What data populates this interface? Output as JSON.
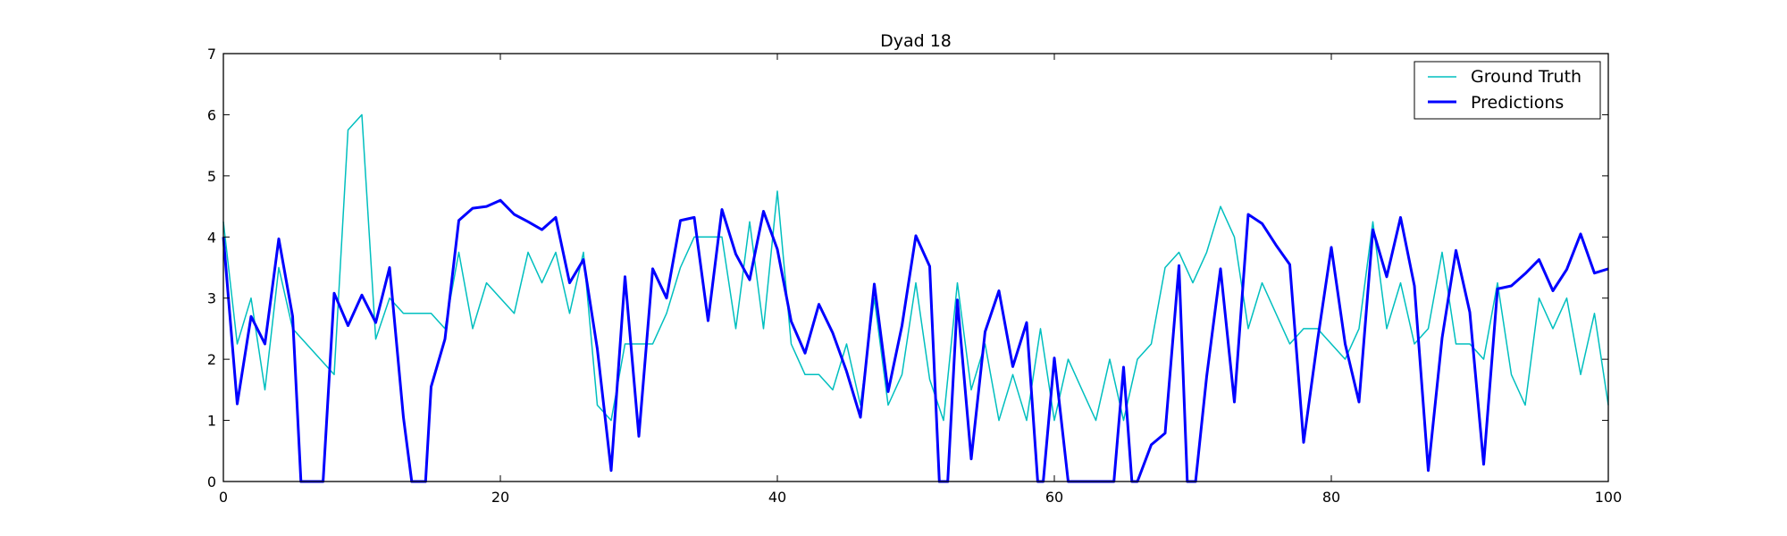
{
  "chart_data": {
    "type": "line",
    "title": "Dyad 18",
    "xlabel": "",
    "ylabel": "",
    "xlim": [
      0,
      100
    ],
    "ylim": [
      0,
      7
    ],
    "x_ticks": [
      "0",
      "20",
      "40",
      "60",
      "80",
      "100"
    ],
    "y_ticks": [
      "0",
      "1",
      "2",
      "3",
      "4",
      "5",
      "6",
      "7"
    ],
    "grid": false,
    "legend_position": "top-right",
    "series": [
      {
        "name": "Ground Truth",
        "color": "#00bfbf",
        "x": [
          0,
          1,
          2,
          3,
          4,
          5,
          6,
          7,
          8,
          9,
          10,
          11,
          12,
          13,
          14,
          15,
          16,
          17,
          18,
          19,
          20,
          21,
          22,
          23,
          24,
          25,
          26,
          27,
          28,
          29,
          30,
          31,
          32,
          33,
          34,
          35,
          36,
          37,
          38,
          39,
          40,
          41,
          42,
          43,
          44,
          45,
          46,
          47,
          48,
          49,
          50,
          51,
          52,
          53,
          54,
          55,
          56,
          57,
          58,
          59,
          60,
          61,
          62,
          63,
          64,
          65,
          66,
          67,
          68,
          69,
          70,
          71,
          72,
          73,
          74,
          75,
          76,
          77,
          78,
          79,
          80,
          81,
          82,
          83,
          84,
          85,
          86,
          87,
          88,
          89,
          90,
          91,
          92,
          93,
          94,
          95,
          96,
          97,
          98,
          99,
          100
        ],
        "y": [
          4.25,
          2.25,
          3.0,
          1.5,
          3.5,
          2.5,
          2.25,
          2.0,
          1.75,
          5.75,
          6.0,
          2.33,
          3.0,
          2.75,
          2.75,
          2.75,
          2.5,
          3.75,
          2.5,
          3.25,
          3.0,
          2.75,
          3.75,
          3.25,
          3.75,
          2.75,
          3.75,
          1.25,
          1.0,
          2.25,
          2.25,
          2.25,
          2.75,
          3.5,
          4.0,
          4.0,
          4.0,
          2.5,
          4.25,
          2.5,
          4.75,
          2.25,
          1.75,
          1.75,
          1.5,
          2.25,
          1.25,
          3.0,
          1.25,
          1.75,
          3.25,
          1.67,
          1.0,
          3.25,
          1.5,
          2.25,
          1.0,
          1.75,
          1.0,
          2.5,
          1.0,
          2.0,
          1.5,
          1.0,
          2.0,
          1.0,
          2.0,
          2.25,
          3.5,
          3.75,
          3.25,
          3.75,
          4.5,
          4.0,
          2.5,
          3.25,
          2.75,
          2.25,
          2.5,
          2.5,
          2.25,
          2.0,
          2.5,
          4.25,
          2.5,
          3.25,
          2.25,
          2.5,
          3.75,
          2.25,
          2.25,
          2.0,
          3.25,
          1.75,
          1.25,
          3.0,
          2.5,
          3.0,
          1.75,
          2.75,
          1.25
        ]
      },
      {
        "name": "Predictions",
        "color": "#0000ff",
        "x": [
          0,
          1,
          2,
          3,
          4,
          5,
          5.6,
          7.2,
          8,
          9,
          10,
          11,
          12,
          13,
          13.6,
          14.6,
          15,
          16,
          17,
          18,
          19,
          20,
          21,
          22,
          23,
          24,
          25,
          26,
          27,
          28,
          29,
          30,
          31,
          32,
          33,
          34,
          35,
          36,
          37,
          38,
          39,
          40,
          41,
          42,
          43,
          44,
          45,
          46,
          47,
          48,
          49,
          50,
          51,
          51.7,
          52.3,
          53,
          54,
          55,
          56,
          57,
          58,
          58.8,
          59.2,
          60,
          61,
          61.4,
          64.3,
          65,
          65.6,
          66,
          67,
          68,
          69,
          69.6,
          70.2,
          71,
          72,
          73,
          74,
          75,
          76,
          77,
          78,
          79,
          80,
          81,
          82,
          83,
          84,
          85,
          86,
          87,
          88,
          89,
          90,
          91,
          92,
          93,
          94,
          95,
          96,
          97,
          98,
          99,
          100
        ],
        "y": [
          4.0,
          1.27,
          2.7,
          2.25,
          3.97,
          2.7,
          0,
          0,
          3.08,
          2.55,
          3.05,
          2.6,
          3.5,
          1.05,
          0,
          0,
          1.55,
          2.33,
          4.27,
          4.47,
          4.5,
          4.6,
          4.37,
          4.25,
          4.12,
          4.32,
          3.25,
          3.63,
          2.17,
          0.18,
          3.35,
          0.74,
          3.48,
          3.0,
          4.27,
          4.32,
          2.63,
          4.45,
          3.72,
          3.3,
          4.42,
          3.8,
          2.62,
          2.1,
          2.9,
          2.43,
          1.8,
          1.05,
          3.23,
          1.47,
          2.55,
          4.02,
          3.52,
          0,
          0,
          2.97,
          0.37,
          2.45,
          3.12,
          1.88,
          2.6,
          0,
          0,
          2.02,
          0,
          0,
          0,
          1.87,
          0,
          0,
          0.6,
          0.79,
          3.53,
          0,
          0,
          1.72,
          3.48,
          1.3,
          4.37,
          4.22,
          3.87,
          3.55,
          0.64,
          2.3,
          3.83,
          2.25,
          1.3,
          4.12,
          3.35,
          4.32,
          3.2,
          0.18,
          2.35,
          3.78,
          2.77,
          0.28,
          3.15,
          3.2,
          3.4,
          3.63,
          3.12,
          3.47,
          4.05,
          3.41,
          3.48
        ]
      }
    ]
  }
}
